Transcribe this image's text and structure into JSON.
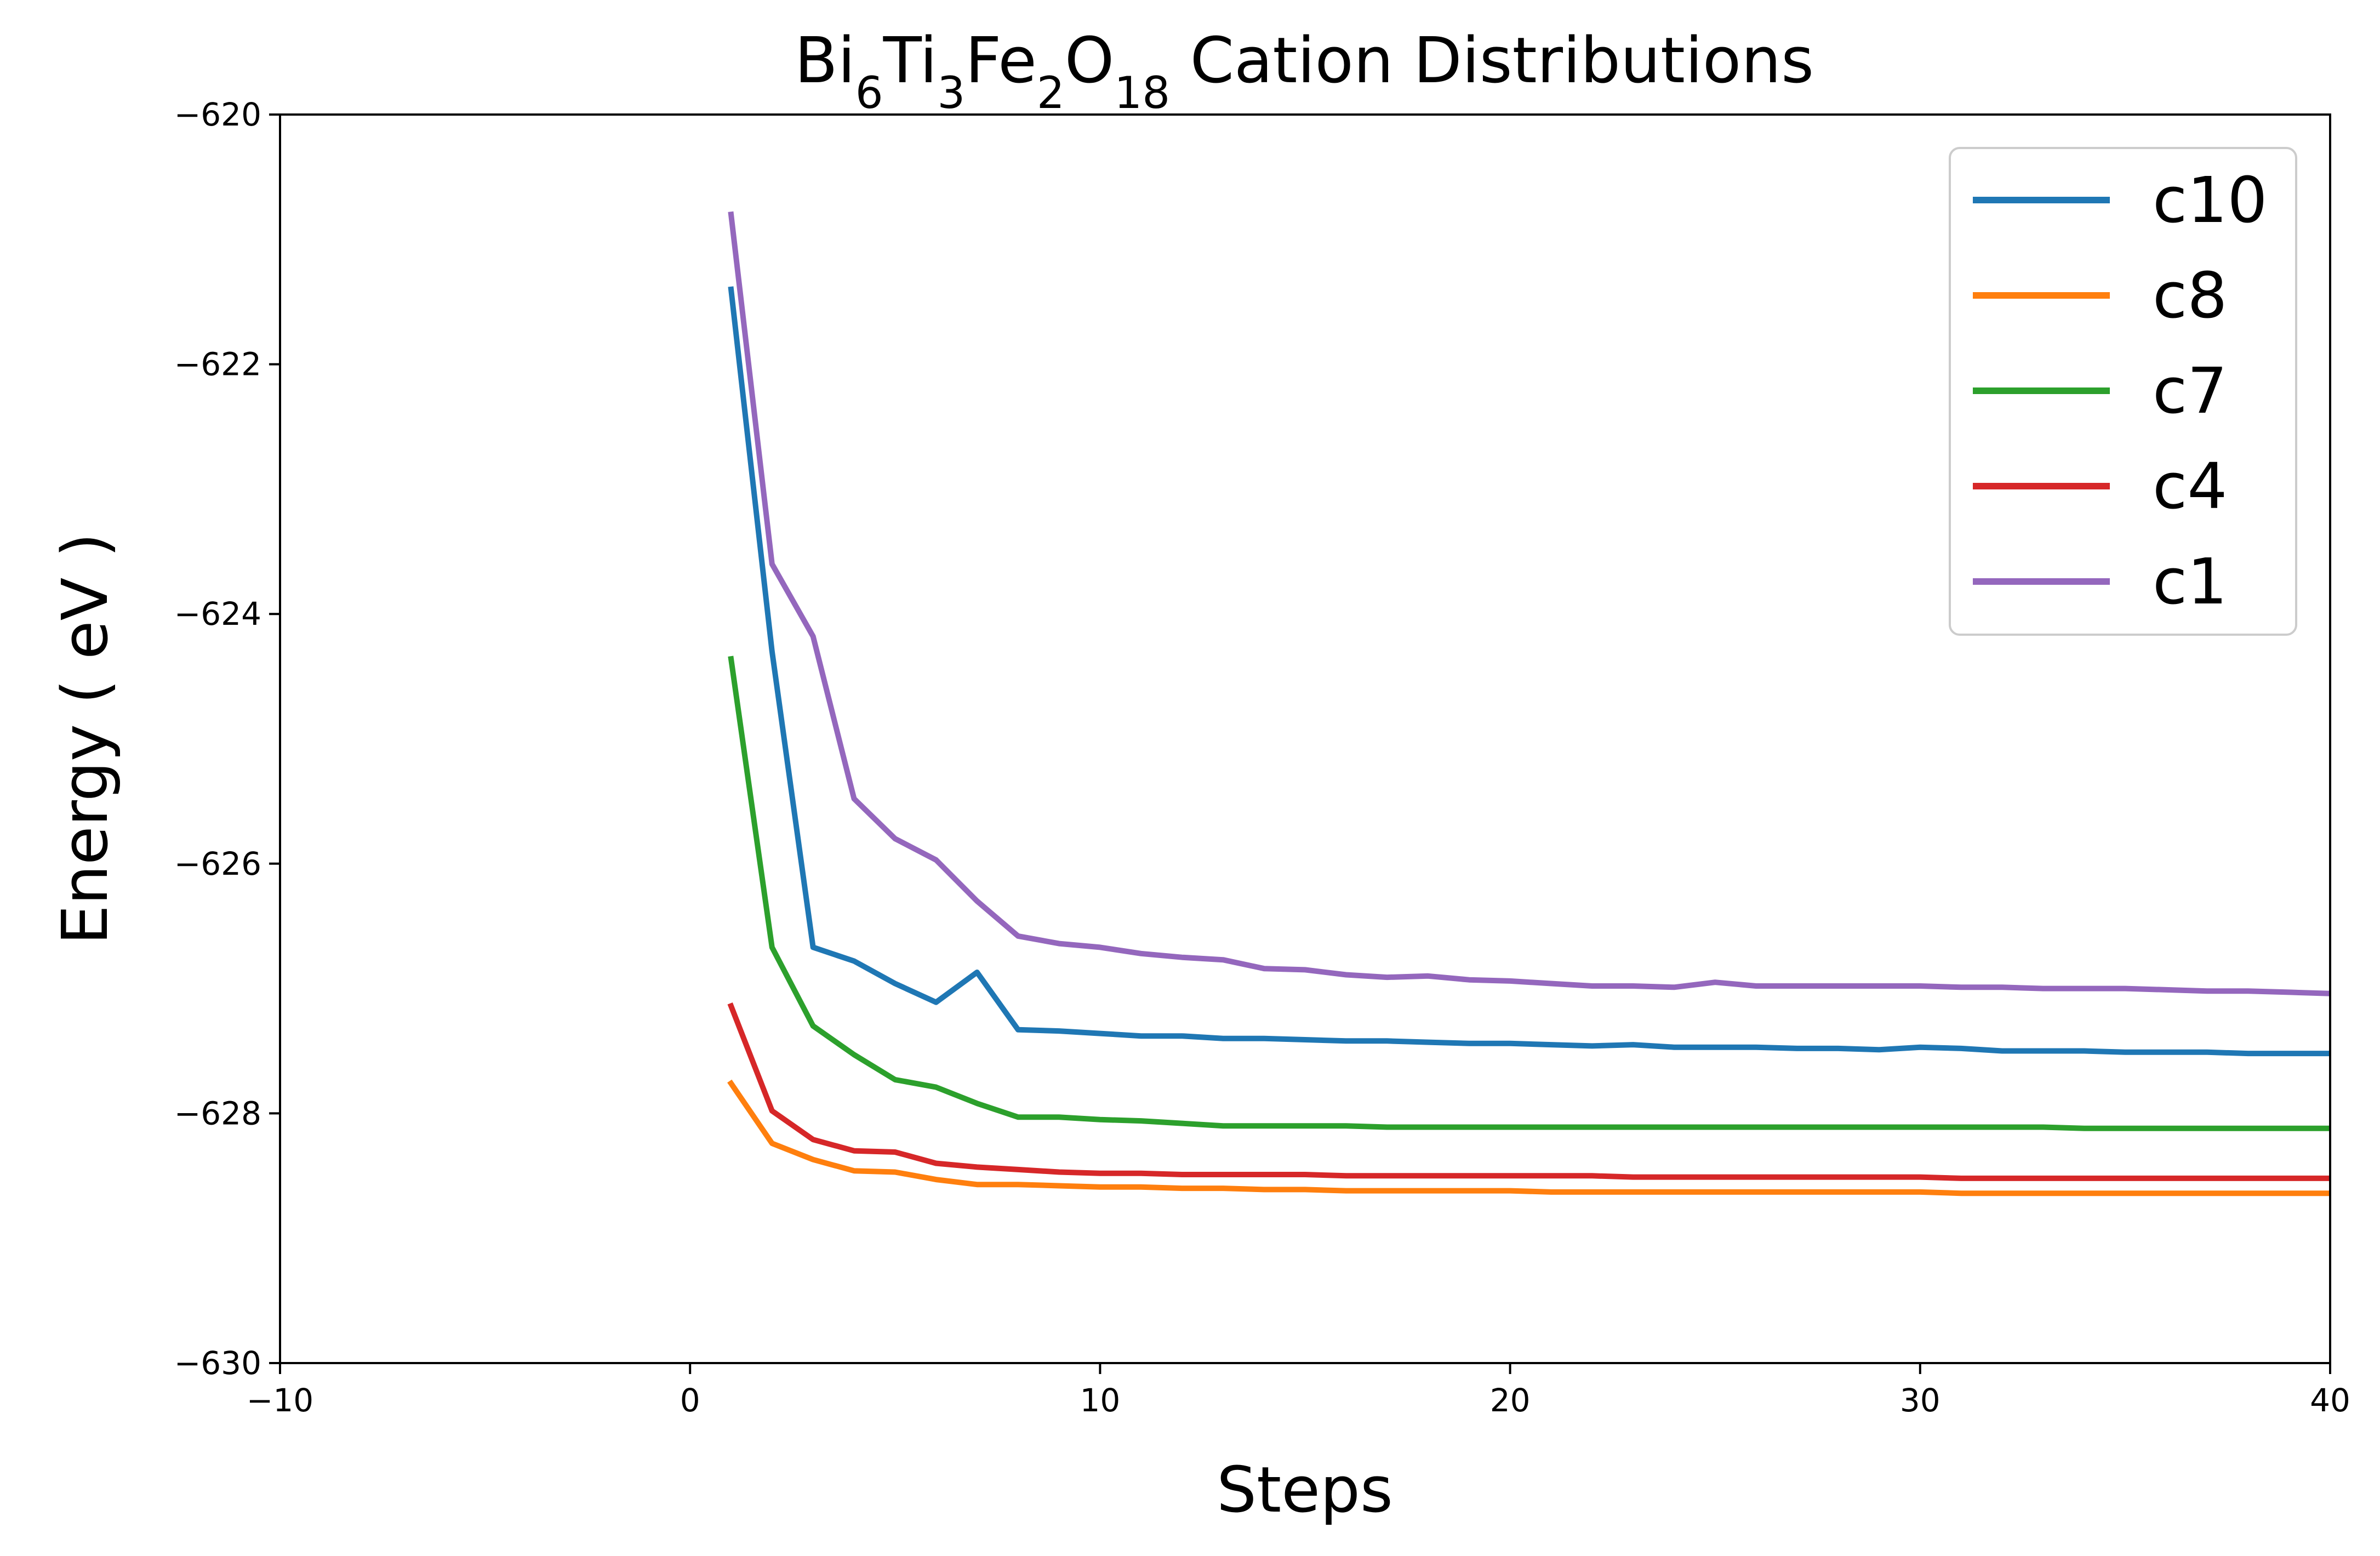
{
  "chart_data": {
    "type": "line",
    "title": {
      "base": "Bi",
      "parts": [
        {
          "text": "Bi",
          "sub": "6"
        },
        {
          "text": "Ti",
          "sub": "3"
        },
        {
          "text": "Fe",
          "sub": "2"
        },
        {
          "text": "O",
          "sub": "18"
        },
        {
          "text": " Cation Distributions",
          "sub": ""
        }
      ]
    },
    "xlabel": "Steps",
    "ylabel": "Energy ( eV )",
    "xlim": [
      -10,
      40
    ],
    "ylim": [
      -630,
      -620
    ],
    "xticks": [
      -10,
      0,
      10,
      20,
      30,
      40
    ],
    "xtick_labels": [
      "−10",
      "0",
      "10",
      "20",
      "30",
      "40"
    ],
    "yticks": [
      -630,
      -628,
      -626,
      -624,
      -622,
      -620
    ],
    "ytick_labels": [
      "−630",
      "−628",
      "−626",
      "−624",
      "−622",
      "−620"
    ],
    "grid": false,
    "legend_position": "top-right",
    "series": [
      {
        "name": "c10",
        "color": "#1f77b4",
        "x": [
          1,
          2,
          3,
          4,
          5,
          6,
          7,
          8,
          9,
          10,
          11,
          12,
          13,
          14,
          15,
          16,
          17,
          18,
          19,
          20,
          21,
          22,
          23,
          24,
          25,
          26,
          27,
          28,
          29,
          30,
          31,
          32,
          33,
          34,
          35,
          36,
          37,
          38,
          39,
          40
        ],
        "y": [
          -621.4,
          -624.3,
          -626.67,
          -626.78,
          -626.96,
          -627.11,
          -626.87,
          -627.33,
          -627.34,
          -627.36,
          -627.38,
          -627.38,
          -627.4,
          -627.4,
          -627.41,
          -627.42,
          -627.42,
          -627.43,
          -627.44,
          -627.44,
          -627.45,
          -627.46,
          -627.45,
          -627.47,
          -627.47,
          -627.47,
          -627.48,
          -627.48,
          -627.49,
          -627.47,
          -627.48,
          -627.5,
          -627.5,
          -627.5,
          -627.51,
          -627.51,
          -627.51,
          -627.52,
          -627.52,
          -627.52
        ]
      },
      {
        "name": "c8",
        "color": "#ff7f0e",
        "x": [
          1,
          2,
          3,
          4,
          5,
          6,
          7,
          8,
          9,
          10,
          11,
          12,
          13,
          14,
          15,
          16,
          17,
          18,
          19,
          20,
          21,
          22,
          23,
          24,
          25,
          26,
          27,
          28,
          29,
          30,
          31,
          32,
          33,
          34,
          35,
          36,
          37,
          38,
          39,
          40
        ],
        "y": [
          -627.76,
          -628.24,
          -628.37,
          -628.46,
          -628.47,
          -628.53,
          -628.57,
          -628.57,
          -628.58,
          -628.59,
          -628.59,
          -628.6,
          -628.6,
          -628.61,
          -628.61,
          -628.62,
          -628.62,
          -628.62,
          -628.62,
          -628.62,
          -628.63,
          -628.63,
          -628.63,
          -628.63,
          -628.63,
          -628.63,
          -628.63,
          -628.63,
          -628.63,
          -628.63,
          -628.64,
          -628.64,
          -628.64,
          -628.64,
          -628.64,
          -628.64,
          -628.64,
          -628.64,
          -628.64,
          -628.64
        ]
      },
      {
        "name": "c7",
        "color": "#2ca02c",
        "x": [
          1,
          2,
          3,
          4,
          5,
          6,
          7,
          8,
          9,
          10,
          11,
          12,
          13,
          14,
          15,
          16,
          17,
          18,
          19,
          20,
          21,
          22,
          23,
          24,
          25,
          26,
          27,
          28,
          29,
          30,
          31,
          32,
          33,
          34,
          35,
          36,
          37,
          38,
          39,
          40
        ],
        "y": [
          -624.36,
          -626.67,
          -627.3,
          -627.53,
          -627.73,
          -627.79,
          -627.92,
          -628.03,
          -628.03,
          -628.05,
          -628.06,
          -628.08,
          -628.1,
          -628.1,
          -628.1,
          -628.1,
          -628.11,
          -628.11,
          -628.11,
          -628.11,
          -628.11,
          -628.11,
          -628.11,
          -628.11,
          -628.11,
          -628.11,
          -628.11,
          -628.11,
          -628.11,
          -628.11,
          -628.11,
          -628.11,
          -628.11,
          -628.12,
          -628.12,
          -628.12,
          -628.12,
          -628.12,
          -628.12,
          -628.12
        ]
      },
      {
        "name": "c4",
        "color": "#d62728",
        "x": [
          1,
          2,
          3,
          4,
          5,
          6,
          7,
          8,
          9,
          10,
          11,
          12,
          13,
          14,
          15,
          16,
          17,
          18,
          19,
          20,
          21,
          22,
          23,
          24,
          25,
          26,
          27,
          28,
          29,
          30,
          31,
          32,
          33,
          34,
          35,
          36,
          37,
          38,
          39,
          40
        ],
        "y": [
          -627.14,
          -627.98,
          -628.21,
          -628.3,
          -628.31,
          -628.4,
          -628.43,
          -628.45,
          -628.47,
          -628.48,
          -628.48,
          -628.49,
          -628.49,
          -628.49,
          -628.49,
          -628.5,
          -628.5,
          -628.5,
          -628.5,
          -628.5,
          -628.5,
          -628.5,
          -628.51,
          -628.51,
          -628.51,
          -628.51,
          -628.51,
          -628.51,
          -628.51,
          -628.51,
          -628.52,
          -628.52,
          -628.52,
          -628.52,
          -628.52,
          -628.52,
          -628.52,
          -628.52,
          -628.52,
          -628.52
        ]
      },
      {
        "name": "c1",
        "color": "#9467bd",
        "x": [
          1,
          2,
          3,
          4,
          5,
          6,
          7,
          8,
          9,
          10,
          11,
          12,
          13,
          14,
          15,
          16,
          17,
          18,
          19,
          20,
          21,
          22,
          23,
          24,
          25,
          26,
          27,
          28,
          29,
          30,
          31,
          32,
          33,
          34,
          35,
          36,
          37,
          38,
          39,
          40
        ],
        "y": [
          -620.8,
          -623.6,
          -624.18,
          -625.48,
          -625.8,
          -625.97,
          -626.3,
          -626.58,
          -626.64,
          -626.67,
          -626.72,
          -626.75,
          -626.77,
          -626.84,
          -626.85,
          -626.89,
          -626.91,
          -626.9,
          -626.93,
          -626.94,
          -626.96,
          -626.98,
          -626.98,
          -626.99,
          -626.95,
          -626.98,
          -626.98,
          -626.98,
          -626.98,
          -626.98,
          -626.99,
          -626.99,
          -627.0,
          -627.0,
          -627.0,
          -627.01,
          -627.02,
          -627.02,
          -627.03,
          -627.04
        ]
      }
    ]
  }
}
